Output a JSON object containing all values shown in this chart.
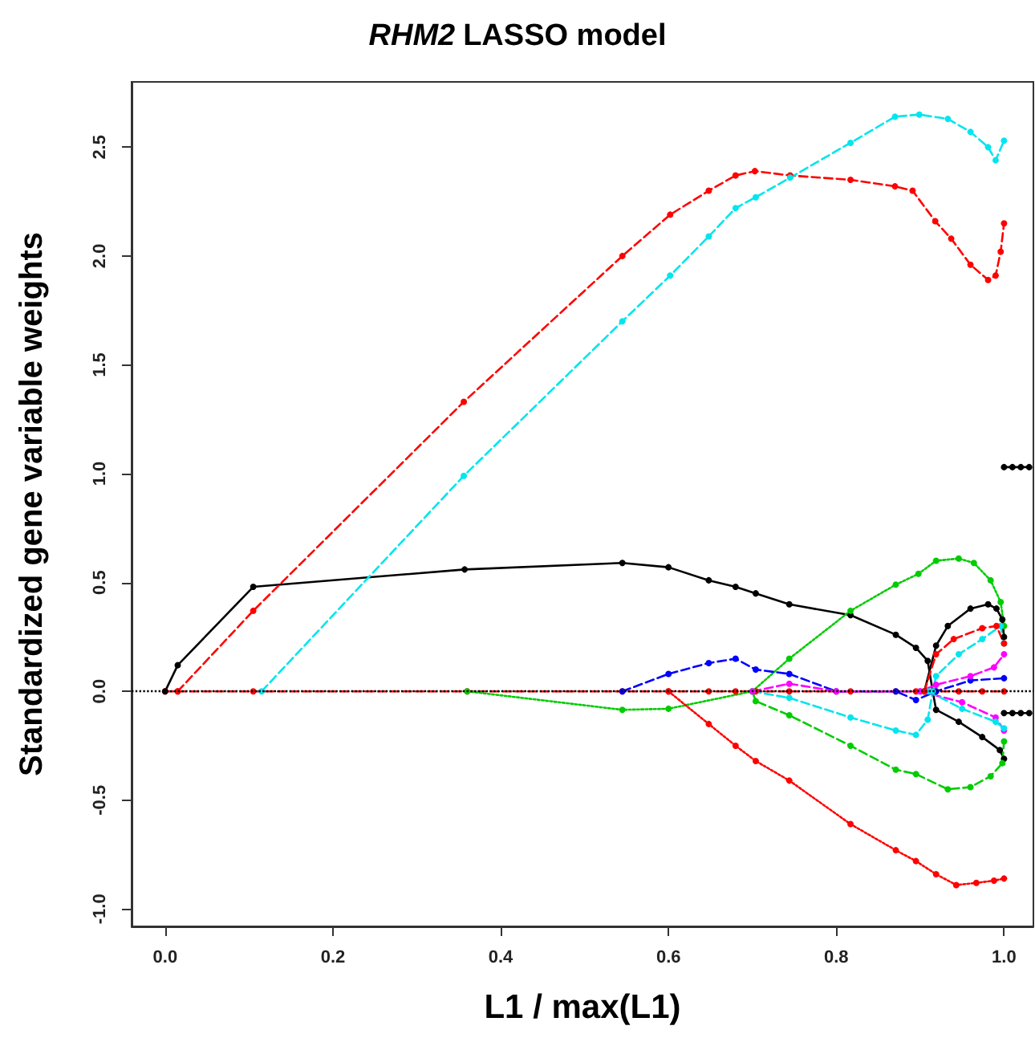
{
  "chart_data": {
    "type": "line",
    "title": "RHM2 LASSO model",
    "xlabel": "L1 / max(L1)",
    "ylabel": "Standardized gene variable weights",
    "xlim": [
      -0.04,
      1.035
    ],
    "ylim": [
      -1.08,
      2.8
    ],
    "xticks": [
      {
        "value": 0,
        "label": "0.0"
      },
      {
        "value": 0.2,
        "label": "0.2"
      },
      {
        "value": 0.4,
        "label": "0.4"
      },
      {
        "value": 0.6,
        "label": "0.6"
      },
      {
        "value": 0.8,
        "label": "0.8"
      },
      {
        "value": 1,
        "label": "1.0"
      }
    ],
    "yticks": [
      {
        "value": -1,
        "label": "-1.0"
      },
      {
        "value": -0.5,
        "label": "-0.5"
      },
      {
        "value": 0,
        "label": "0.0"
      },
      {
        "value": 0.5,
        "label": "0.5"
      },
      {
        "value": 1,
        "label": "1.0"
      },
      {
        "value": 1.5,
        "label": "1.5"
      },
      {
        "value": 2,
        "label": "2.0"
      },
      {
        "value": 2.5,
        "label": "2.5"
      }
    ],
    "marker": "circle",
    "ref_lines": [
      {
        "axis": "y",
        "value": 0,
        "color": "#000000",
        "line_style": "dotted"
      }
    ],
    "series": [
      {
        "color": "#ff0000",
        "line_style": "dashed",
        "x": [
          0,
          0.015,
          0.105,
          0.36,
          0.545,
          0.6,
          0.648,
          0.68,
          0.704,
          0.744,
          0.817,
          0.871,
          0.895,
          0.919,
          0.946,
          0.974,
          1.0
        ],
        "values": [
          0,
          0,
          0,
          0,
          0,
          0,
          0,
          0,
          0,
          0,
          0,
          0,
          0,
          0,
          0,
          0,
          0
        ]
      },
      {
        "color": "#000000",
        "line_style": "solid",
        "x": [
          0,
          0.015,
          0.105,
          0.357,
          0.545,
          0.6,
          0.648,
          0.68,
          0.704,
          0.744,
          0.817,
          0.871,
          0.895,
          0.909,
          0.915,
          0.919,
          0.946,
          0.974,
          0.995,
          1.0
        ],
        "values": [
          0,
          0.12,
          0.48,
          0.56,
          0.59,
          0.57,
          0.51,
          0.48,
          0.45,
          0.4,
          0.35,
          0.26,
          0.2,
          0.14,
          0,
          -0.085,
          -0.14,
          -0.21,
          -0.27,
          -0.31
        ]
      },
      {
        "color": "#ff0000",
        "line_style": "dashed",
        "x": [
          0.015,
          0.105,
          0.356,
          0.545,
          0.602,
          0.648,
          0.68,
          0.703,
          0.745,
          0.817,
          0.87,
          0.891,
          0.918,
          0.937,
          0.96,
          0.981,
          0.99,
          0.996,
          1.0
        ],
        "values": [
          0,
          0.37,
          1.33,
          2.0,
          2.19,
          2.3,
          2.37,
          2.39,
          2.37,
          2.35,
          2.32,
          2.3,
          2.16,
          2.08,
          1.96,
          1.89,
          1.91,
          2.02,
          2.15
        ]
      },
      {
        "color": "#00e5ee",
        "line_style": "dashed",
        "x": [
          0.115,
          0.356,
          0.545,
          0.602,
          0.648,
          0.68,
          0.704,
          0.745,
          0.817,
          0.87,
          0.899,
          0.933,
          0.96,
          0.981,
          0.99,
          1.0
        ],
        "values": [
          0,
          0.99,
          1.7,
          1.91,
          2.09,
          2.22,
          2.27,
          2.36,
          2.52,
          2.64,
          2.65,
          2.63,
          2.57,
          2.5,
          2.44,
          2.53
        ]
      },
      {
        "color": "#00cc00",
        "line_style": "dotted",
        "x": [
          0.36,
          0.545,
          0.6,
          0.7,
          0.744,
          0.817,
          0.871,
          0.898,
          0.919,
          0.946,
          0.964,
          0.984,
          0.996,
          1.0
        ],
        "values": [
          0,
          -0.085,
          -0.08,
          0,
          0.15,
          0.37,
          0.49,
          0.54,
          0.6,
          0.61,
          0.59,
          0.51,
          0.41,
          0.3
        ]
      },
      {
        "color": "#00cc00",
        "line_style": "dashed",
        "x": [
          0.7,
          0.704,
          0.744,
          0.817,
          0.871,
          0.895,
          0.933,
          0.96,
          0.984,
          0.998,
          1.0
        ],
        "values": [
          0,
          -0.045,
          -0.11,
          -0.25,
          -0.36,
          -0.38,
          -0.45,
          -0.44,
          -0.39,
          -0.33,
          -0.23
        ]
      },
      {
        "color": "#ff0000",
        "line_style": "dotted",
        "x": [
          0.6,
          0.648,
          0.68,
          0.704,
          0.744,
          0.817,
          0.871,
          0.895,
          0.919,
          0.943,
          0.967,
          0.988,
          1.0
        ],
        "values": [
          0,
          -0.15,
          -0.25,
          -0.32,
          -0.41,
          -0.61,
          -0.73,
          -0.78,
          -0.84,
          -0.89,
          -0.88,
          -0.87,
          -0.86
        ]
      },
      {
        "color": "#0000ff",
        "line_style": "dashed",
        "x": [
          0.545,
          0.6,
          0.648,
          0.68,
          0.704,
          0.744,
          0.8,
          0.871,
          0.895,
          0.919,
          0.96,
          1.0
        ],
        "values": [
          0,
          0.08,
          0.13,
          0.15,
          0.1,
          0.08,
          0,
          0,
          -0.04,
          0,
          0.05,
          0.06
        ]
      },
      {
        "color": "#00e5ee",
        "line_style": "dashed",
        "x": [
          0.7,
          0.744,
          0.817,
          0.871,
          0.895,
          0.909,
          0.915,
          0.919,
          0.946,
          0.974,
          0.996,
          1.0
        ],
        "values": [
          0,
          -0.03,
          -0.12,
          -0.18,
          -0.2,
          -0.13,
          0,
          0.07,
          0.17,
          0.24,
          0.3,
          0.22
        ]
      },
      {
        "color": "#ff00ff",
        "line_style": "dashed",
        "x": [
          0.7,
          0.744,
          0.8,
          0.9,
          0.919,
          0.96,
          0.988,
          1.0
        ],
        "values": [
          0,
          0.035,
          0,
          0,
          0.03,
          0.07,
          0.11,
          0.17
        ]
      },
      {
        "color": "#ff00ff",
        "line_style": "dashed",
        "x": [
          0.9,
          0.95,
          0.99,
          1.0
        ],
        "values": [
          0,
          -0.05,
          -0.12,
          -0.18
        ]
      },
      {
        "color": "#00e5ee",
        "line_style": "dashed",
        "x": [
          0.91,
          0.95,
          0.99,
          1.0
        ],
        "values": [
          0,
          -0.08,
          -0.14,
          -0.17
        ]
      },
      {
        "color": "#000000",
        "line_style": "solid",
        "x": [
          0.905,
          0.919,
          0.933,
          0.96,
          0.981,
          0.991,
          0.998,
          1.0
        ],
        "values": [
          0,
          0.21,
          0.3,
          0.38,
          0.4,
          0.38,
          0.33,
          0.25
        ]
      },
      {
        "color": "#ff0000",
        "line_style": "dashed",
        "x": [
          0.905,
          0.919,
          0.94,
          0.974,
          0.991,
          1.0
        ],
        "values": [
          0,
          0.17,
          0.24,
          0.29,
          0.3,
          0.22
        ]
      },
      {
        "color": "#000000",
        "line_style": "solid",
        "x": [
          1.0,
          1.01,
          1.02,
          1.03
        ],
        "values": [
          1.03,
          1.03,
          1.03,
          1.03
        ]
      },
      {
        "color": "#000000",
        "line_style": "solid",
        "x": [
          1.0,
          1.01,
          1.02,
          1.03
        ],
        "values": [
          -0.1,
          -0.1,
          -0.1,
          -0.1
        ]
      }
    ]
  }
}
